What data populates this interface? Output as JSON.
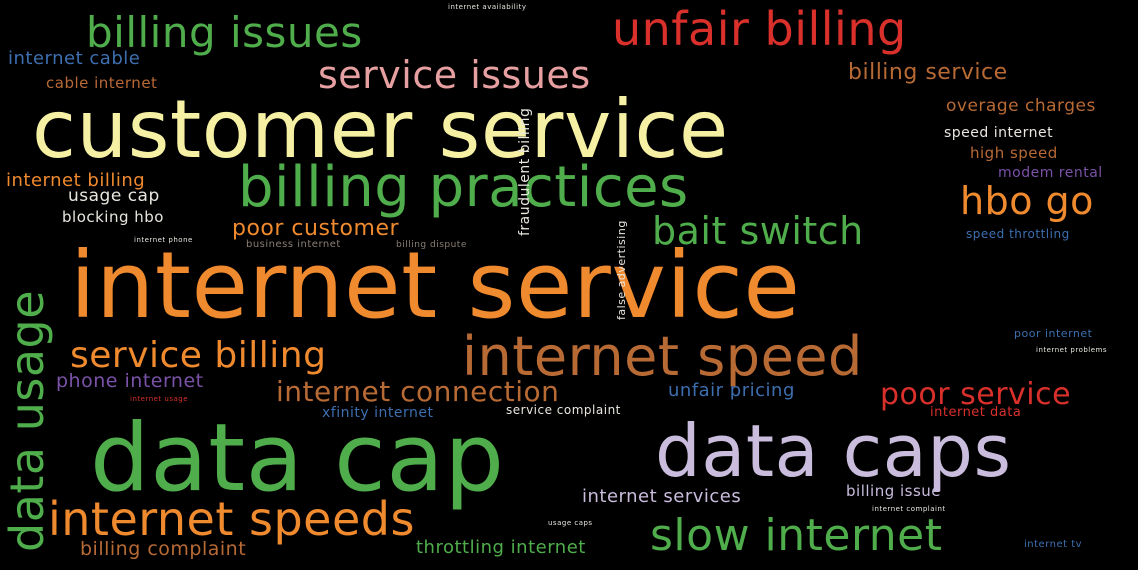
{
  "colors": {
    "green": "#4fae4b",
    "cream": "#f5f0a3",
    "orange": "#f08a2e",
    "red": "#d9302b",
    "brown": "#b86a35",
    "lavender": "#c9bcdc",
    "pink": "#e7a0a1",
    "blue": "#3d6fb0",
    "purple": "#7a52a8",
    "light": "#e9e6df",
    "dim": "#8a7f74"
  },
  "words": [
    {
      "text": "customer service",
      "color": "cream"
    },
    {
      "text": "internet service",
      "color": "orange"
    },
    {
      "text": "data cap",
      "color": "green"
    },
    {
      "text": "data caps",
      "color": "lavender"
    },
    {
      "text": "billing practices",
      "color": "green"
    },
    {
      "text": "internet speed",
      "color": "brown"
    },
    {
      "text": "unfair billing",
      "color": "red"
    },
    {
      "text": "billing issues",
      "color": "green"
    },
    {
      "text": "internet speeds",
      "color": "orange"
    },
    {
      "text": "slow internet",
      "color": "green"
    },
    {
      "text": "service issues",
      "color": "pink"
    },
    {
      "text": "service billing",
      "color": "orange"
    },
    {
      "text": "bait switch",
      "color": "green"
    },
    {
      "text": "hbo go",
      "color": "orange"
    },
    {
      "text": "data usage",
      "color": "green"
    },
    {
      "text": "internet connection",
      "color": "brown"
    },
    {
      "text": "poor service",
      "color": "red"
    },
    {
      "text": "poor customer",
      "color": "orange"
    },
    {
      "text": "billing service",
      "color": "brown"
    },
    {
      "text": "internet cable",
      "color": "blue"
    },
    {
      "text": "cable internet",
      "color": "brown"
    },
    {
      "text": "internet billing",
      "color": "orange"
    },
    {
      "text": "usage cap",
      "color": "light"
    },
    {
      "text": "blocking hbo",
      "color": "light"
    },
    {
      "text": "phone internet",
      "color": "purple"
    },
    {
      "text": "billing complaint",
      "color": "brown"
    },
    {
      "text": "throttling internet",
      "color": "green"
    },
    {
      "text": "internet services",
      "color": "lavender"
    },
    {
      "text": "unfair pricing",
      "color": "blue"
    },
    {
      "text": "xfinity internet",
      "color": "blue"
    },
    {
      "text": "overage charges",
      "color": "brown"
    },
    {
      "text": "speed internet",
      "color": "light"
    },
    {
      "text": "high speed",
      "color": "brown"
    },
    {
      "text": "modem rental",
      "color": "purple"
    },
    {
      "text": "fraudulent billing",
      "color": "light"
    },
    {
      "text": "false advertising",
      "color": "light"
    },
    {
      "text": "speed throttling",
      "color": "blue"
    },
    {
      "text": "poor internet",
      "color": "blue"
    },
    {
      "text": "billing issue",
      "color": "lavender"
    },
    {
      "text": "internet data",
      "color": "red"
    },
    {
      "text": "service complaint",
      "color": "light"
    },
    {
      "text": "business internet",
      "color": "dim"
    },
    {
      "text": "billing dispute",
      "color": "dim"
    },
    {
      "text": "internet phone",
      "color": "light"
    },
    {
      "text": "internet availability",
      "color": "light"
    },
    {
      "text": "internet problems",
      "color": "light"
    },
    {
      "text": "internet usage",
      "color": "red"
    },
    {
      "text": "usage caps",
      "color": "light"
    },
    {
      "text": "internet complaint",
      "color": "light"
    },
    {
      "text": "internet tv",
      "color": "blue"
    }
  ]
}
